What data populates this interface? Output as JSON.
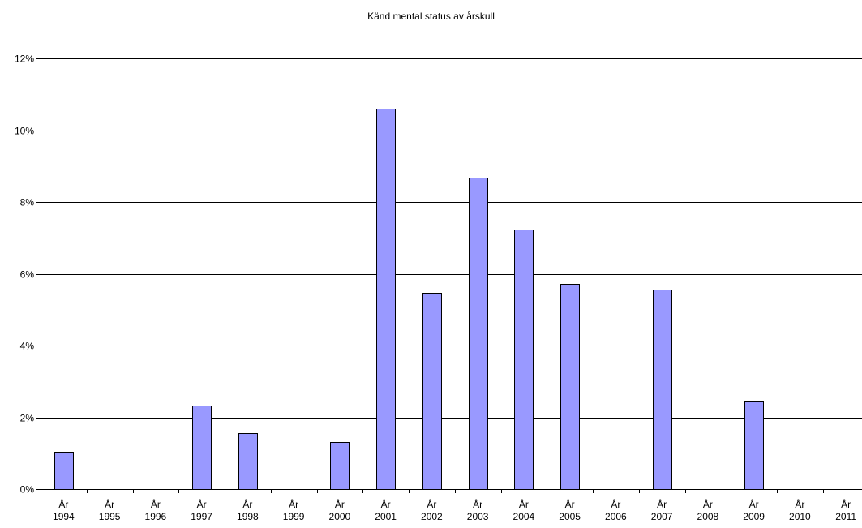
{
  "chart_data": {
    "type": "bar",
    "title": "Känd mental status av årskull",
    "xlabel": "",
    "ylabel": "",
    "categories": [
      "År 1994",
      "År 1995",
      "År 1996",
      "År 1997",
      "År 1998",
      "År 1999",
      "År 2000",
      "År 2001",
      "År 2002",
      "År 2003",
      "År 2004",
      "År 2005",
      "År 2006",
      "År 2007",
      "År 2008",
      "År 2009",
      "År 2010",
      "År 2011"
    ],
    "values": [
      1.05,
      0,
      0,
      2.33,
      1.55,
      0,
      1.3,
      10.6,
      5.48,
      8.68,
      7.24,
      5.71,
      0,
      5.55,
      0,
      2.44,
      0,
      0
    ],
    "ylim": [
      0,
      12
    ],
    "yticks": [
      0,
      2,
      4,
      6,
      8,
      10,
      12
    ],
    "ytick_labels": [
      "0%",
      "2%",
      "4%",
      "6%",
      "8%",
      "10%",
      "12%"
    ],
    "grid": true,
    "bar_color": "#9999ff",
    "bar_edge_color": "#000000",
    "grid_color": "#000000"
  }
}
